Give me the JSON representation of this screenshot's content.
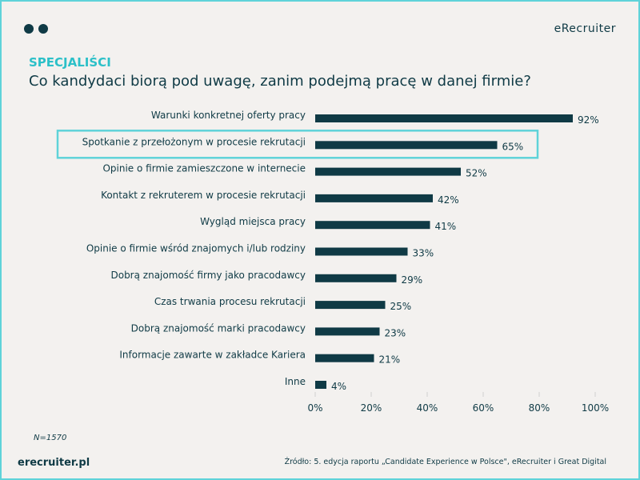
{
  "header": {
    "brand": "eRecruiter",
    "subtitle": "SPECJALIŚCI",
    "title": "Co kandydaci biorą pod uwagę, zanim podejmą pracę w danej firmie?"
  },
  "footer": {
    "n": "N=1570",
    "site": "erecruiter.pl",
    "source": "Źródło: 5. edycja raportu „Candidate Experience w Polsce\", eRecruiter i Great Digital"
  },
  "colors": {
    "bar": "#0f3a45",
    "accent": "#5fd3d9",
    "background": "#f3f1ef"
  },
  "chart_data": {
    "type": "bar",
    "orientation": "horizontal",
    "categories": [
      "Warunki konkretnej oferty pracy",
      "Spotkanie z przełożonym w procesie rekrutacji",
      "Opinie o firmie zamieszczone w internecie",
      "Kontakt z rekruterem w procesie rekrutacji",
      "Wygląd miejsca pracy",
      "Opinie o firmie wśród znajomych i/lub rodziny",
      "Dobrą znajomość firmy jako pracodawcy",
      "Czas trwania procesu rekrutacji",
      "Dobrą znajomość marki pracodawcy",
      "Informacje zawarte w zakładce Kariera",
      "Inne"
    ],
    "values": [
      92,
      65,
      52,
      42,
      41,
      33,
      29,
      25,
      23,
      21,
      4
    ],
    "data_labels": [
      "92%",
      "65%",
      "52%",
      "42%",
      "41%",
      "33%",
      "29%",
      "25%",
      "23%",
      "21%",
      "4%"
    ],
    "xlim": [
      0,
      100
    ],
    "x_ticks": [
      "0%",
      "20%",
      "40%",
      "60%",
      "80%",
      "100%"
    ],
    "highlighted_category": "Spotkanie z przełożonym w procesie rekrutacji",
    "grid": false
  }
}
